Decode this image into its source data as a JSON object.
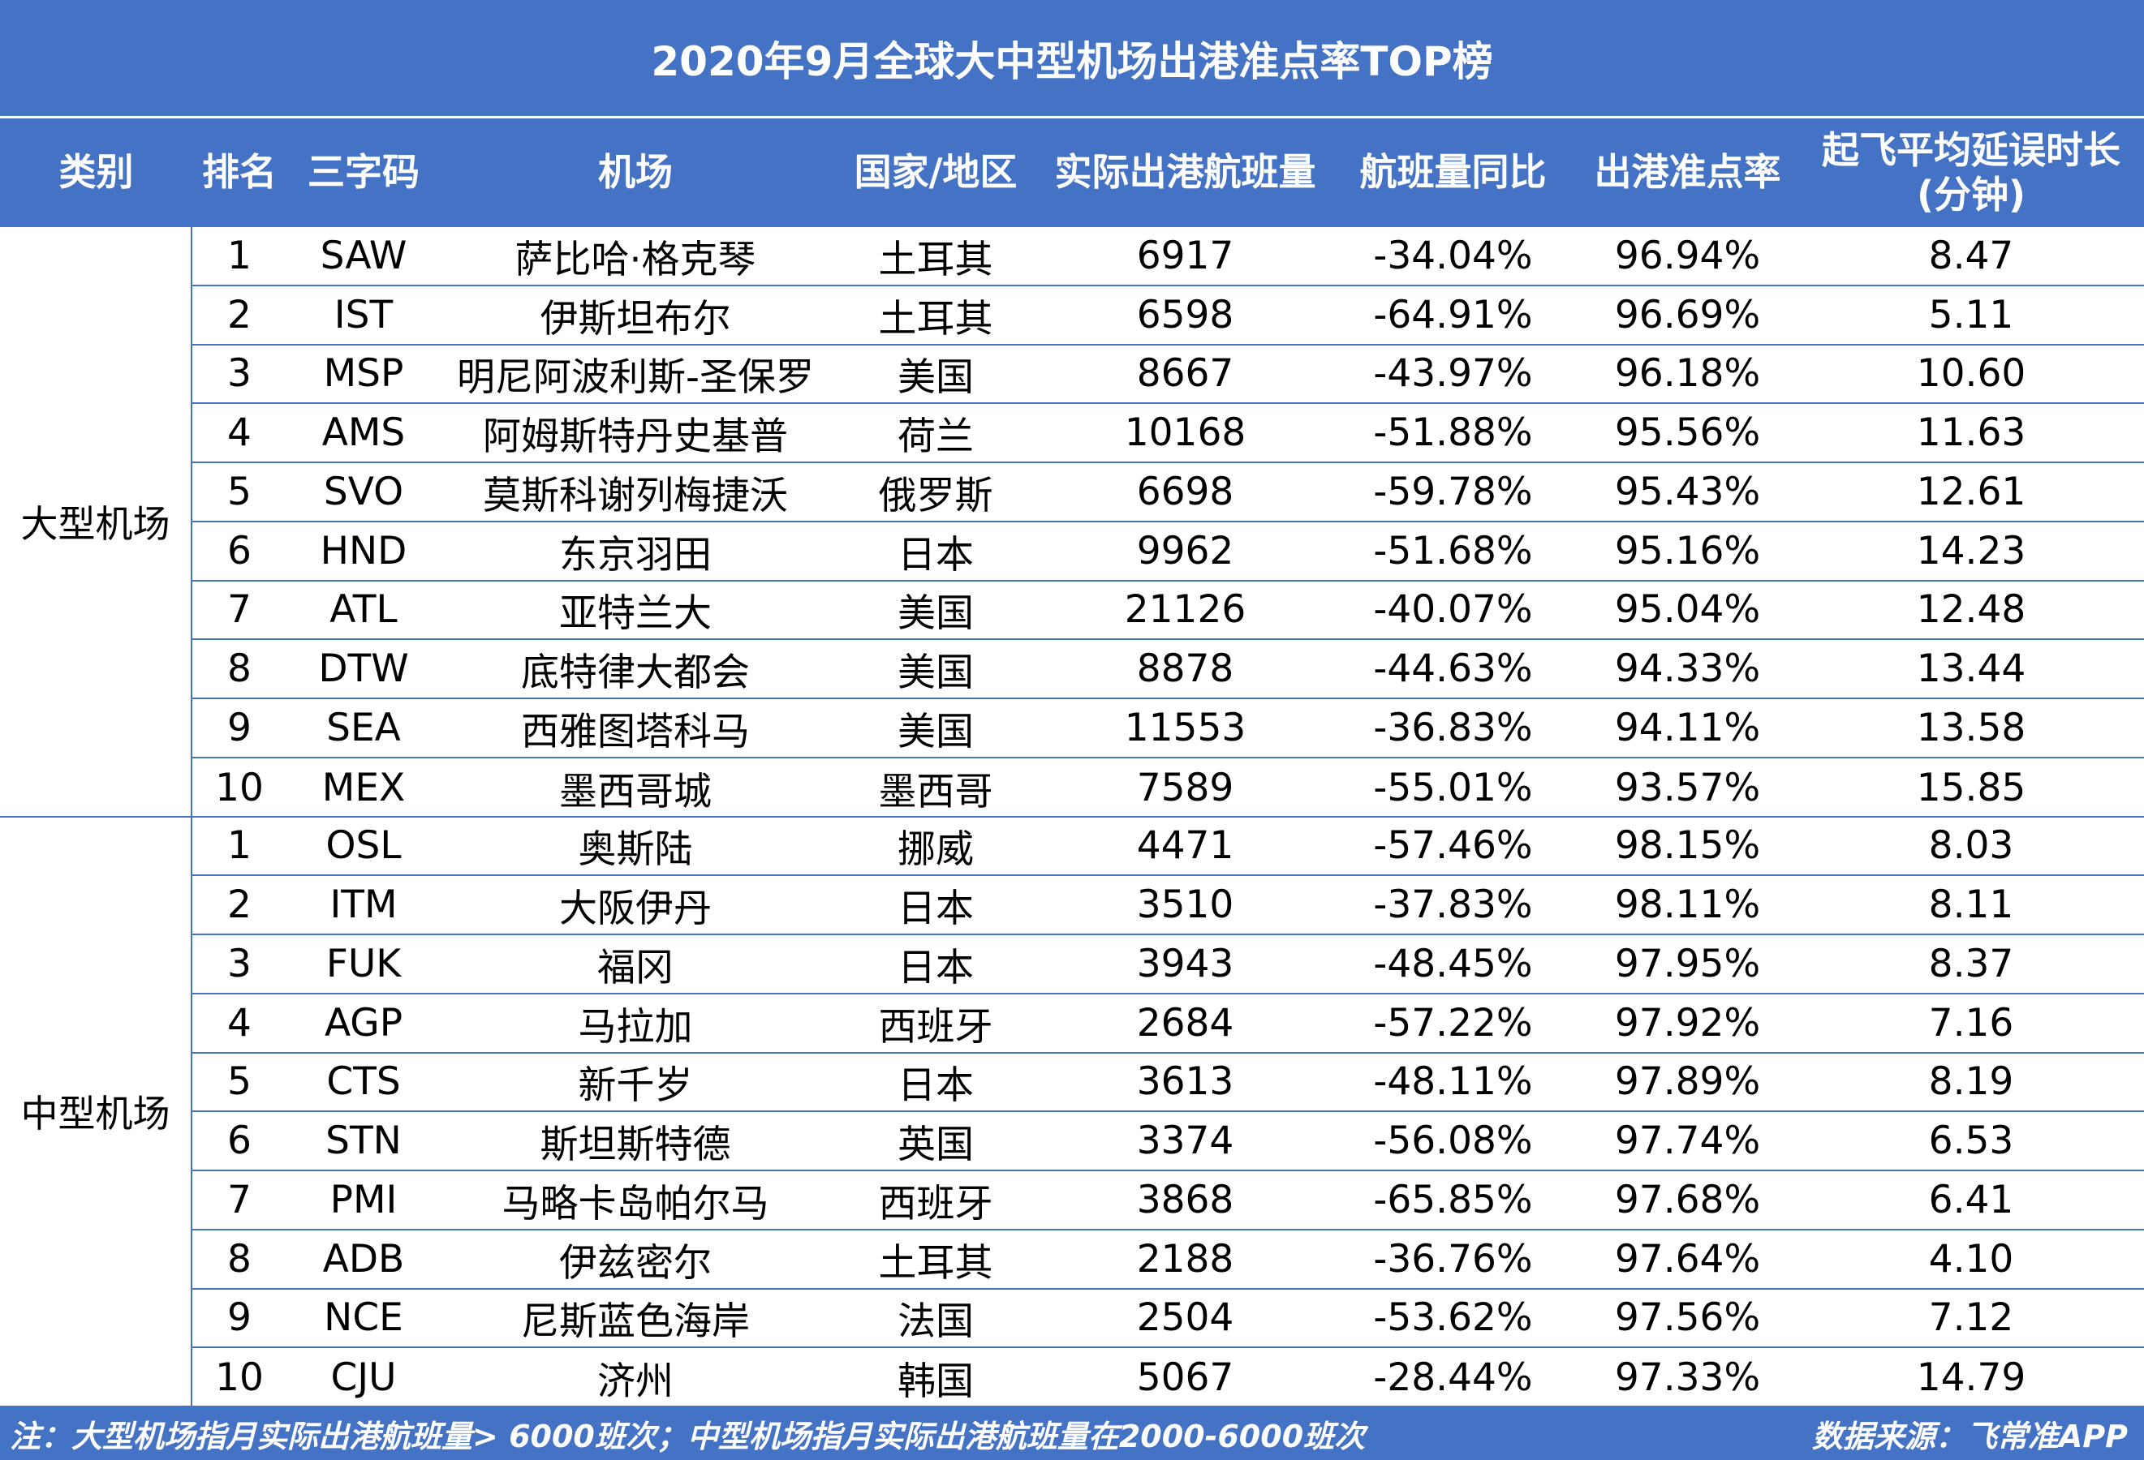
{
  "title": "2020年9月全球大中型机场出港准点率TOP榜",
  "headers": {
    "category": "类别",
    "rank": "排名",
    "code": "三字码",
    "airport": "机场",
    "country": "国家/地区",
    "flights": "实际出港航班量",
    "yoy": "航班量同比",
    "ontime": "出港准点率",
    "delay_line1": "起飞平均延误时长",
    "delay_line2": "(分钟)"
  },
  "groups": [
    {
      "label": "大型机场",
      "rows": [
        {
          "rank": "1",
          "code": "SAW",
          "airport": "萨比哈·格克琴",
          "country": "土耳其",
          "flights": "6917",
          "yoy": "-34.04%",
          "ontime": "96.94%",
          "delay": "8.47"
        },
        {
          "rank": "2",
          "code": "IST",
          "airport": "伊斯坦布尔",
          "country": "土耳其",
          "flights": "6598",
          "yoy": "-64.91%",
          "ontime": "96.69%",
          "delay": "5.11"
        },
        {
          "rank": "3",
          "code": "MSP",
          "airport": "明尼阿波利斯-圣保罗",
          "country": "美国",
          "flights": "8667",
          "yoy": "-43.97%",
          "ontime": "96.18%",
          "delay": "10.60"
        },
        {
          "rank": "4",
          "code": "AMS",
          "airport": "阿姆斯特丹史基普",
          "country": "荷兰",
          "flights": "10168",
          "yoy": "-51.88%",
          "ontime": "95.56%",
          "delay": "11.63"
        },
        {
          "rank": "5",
          "code": "SVO",
          "airport": "莫斯科谢列梅捷沃",
          "country": "俄罗斯",
          "flights": "6698",
          "yoy": "-59.78%",
          "ontime": "95.43%",
          "delay": "12.61"
        },
        {
          "rank": "6",
          "code": "HND",
          "airport": "东京羽田",
          "country": "日本",
          "flights": "9962",
          "yoy": "-51.68%",
          "ontime": "95.16%",
          "delay": "14.23"
        },
        {
          "rank": "7",
          "code": "ATL",
          "airport": "亚特兰大",
          "country": "美国",
          "flights": "21126",
          "yoy": "-40.07%",
          "ontime": "95.04%",
          "delay": "12.48"
        },
        {
          "rank": "8",
          "code": "DTW",
          "airport": "底特律大都会",
          "country": "美国",
          "flights": "8878",
          "yoy": "-44.63%",
          "ontime": "94.33%",
          "delay": "13.44"
        },
        {
          "rank": "9",
          "code": "SEA",
          "airport": "西雅图塔科马",
          "country": "美国",
          "flights": "11553",
          "yoy": "-36.83%",
          "ontime": "94.11%",
          "delay": "13.58"
        },
        {
          "rank": "10",
          "code": "MEX",
          "airport": "墨西哥城",
          "country": "墨西哥",
          "flights": "7589",
          "yoy": "-55.01%",
          "ontime": "93.57%",
          "delay": "15.85"
        }
      ]
    },
    {
      "label": "中型机场",
      "rows": [
        {
          "rank": "1",
          "code": "OSL",
          "airport": "奥斯陆",
          "country": "挪威",
          "flights": "4471",
          "yoy": "-57.46%",
          "ontime": "98.15%",
          "delay": "8.03"
        },
        {
          "rank": "2",
          "code": "ITM",
          "airport": "大阪伊丹",
          "country": "日本",
          "flights": "3510",
          "yoy": "-37.83%",
          "ontime": "98.11%",
          "delay": "8.11"
        },
        {
          "rank": "3",
          "code": "FUK",
          "airport": "福冈",
          "country": "日本",
          "flights": "3943",
          "yoy": "-48.45%",
          "ontime": "97.95%",
          "delay": "8.37"
        },
        {
          "rank": "4",
          "code": "AGP",
          "airport": "马拉加",
          "country": "西班牙",
          "flights": "2684",
          "yoy": "-57.22%",
          "ontime": "97.92%",
          "delay": "7.16"
        },
        {
          "rank": "5",
          "code": "CTS",
          "airport": "新千岁",
          "country": "日本",
          "flights": "3613",
          "yoy": "-48.11%",
          "ontime": "97.89%",
          "delay": "8.19"
        },
        {
          "rank": "6",
          "code": "STN",
          "airport": "斯坦斯特德",
          "country": "英国",
          "flights": "3374",
          "yoy": "-56.08%",
          "ontime": "97.74%",
          "delay": "6.53"
        },
        {
          "rank": "7",
          "code": "PMI",
          "airport": "马略卡岛帕尔马",
          "country": "西班牙",
          "flights": "3868",
          "yoy": "-65.85%",
          "ontime": "97.68%",
          "delay": "6.41"
        },
        {
          "rank": "8",
          "code": "ADB",
          "airport": "伊兹密尔",
          "country": "土耳其",
          "flights": "2188",
          "yoy": "-36.76%",
          "ontime": "97.64%",
          "delay": "4.10"
        },
        {
          "rank": "9",
          "code": "NCE",
          "airport": "尼斯蓝色海岸",
          "country": "法国",
          "flights": "2504",
          "yoy": "-53.62%",
          "ontime": "97.56%",
          "delay": "7.12"
        },
        {
          "rank": "10",
          "code": "CJU",
          "airport": "济州",
          "country": "韩国",
          "flights": "5067",
          "yoy": "-28.44%",
          "ontime": "97.33%",
          "delay": "14.79"
        }
      ]
    }
  ],
  "footer": {
    "note": "注：大型机场指月实际出港航班量> 6000班次；中型机场指月实际出港航班量在2000-6000班次",
    "source": "数据来源：飞常准APP"
  },
  "colors": {
    "header_bg": "#4472c4",
    "header_text": "#ffffff",
    "grid_line": "#4472c4",
    "body_text": "#000000"
  }
}
